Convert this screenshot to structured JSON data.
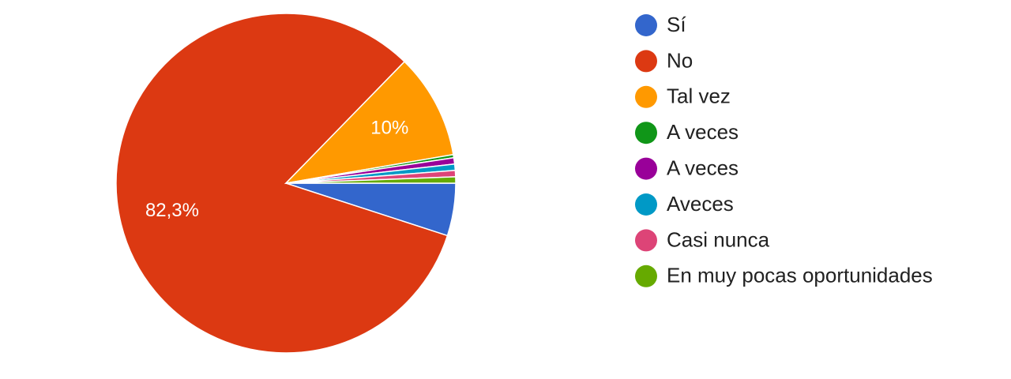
{
  "chart_data": {
    "type": "pie",
    "categories": [
      "Sí",
      "No",
      "Tal vez",
      "A veces",
      "A veces",
      "Aveces",
      "Casi nunca",
      "En muy pocas oportunidades"
    ],
    "values": [
      5,
      82.3,
      10,
      0.3,
      0.6,
      0.6,
      0.6,
      0.6
    ],
    "value_labels": [
      null,
      "82,3%",
      "10%",
      null,
      null,
      null,
      null,
      null
    ],
    "colors": [
      "#3366cc",
      "#dc3912",
      "#ff9900",
      "#109618",
      "#990099",
      "#0099c6",
      "#dd4477",
      "#66aa00"
    ],
    "legend": "right"
  }
}
